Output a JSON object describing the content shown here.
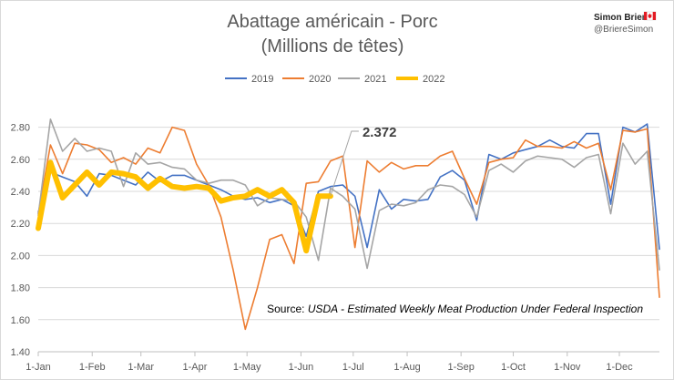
{
  "chart_data": {
    "type": "line",
    "title": "Abattage américain - Porc",
    "subtitle": "(Millions de têtes)",
    "xlabel": "",
    "ylabel": "",
    "ylim": [
      1.4,
      2.9
    ],
    "yticks": [
      "1.40",
      "1.60",
      "1.80",
      "2.00",
      "2.20",
      "2.40",
      "2.60",
      "2.80"
    ],
    "xlim": [
      1,
      52
    ],
    "xticks": [
      {
        "week": 1,
        "label": "1-Jan"
      },
      {
        "week": 5.43,
        "label": "1-Feb"
      },
      {
        "week": 9.43,
        "label": "1-Mar"
      },
      {
        "week": 13.86,
        "label": "1-Apr"
      },
      {
        "week": 18.14,
        "label": "1-May"
      },
      {
        "week": 22.57,
        "label": "1-Jun"
      },
      {
        "week": 26.86,
        "label": "1-Jul"
      },
      {
        "week": 31.29,
        "label": "1-Aug"
      },
      {
        "week": 35.71,
        "label": "1-Sep"
      },
      {
        "week": 40,
        "label": "1-Oct"
      },
      {
        "week": 44.43,
        "label": "1-Nov"
      },
      {
        "week": 48.71,
        "label": "1-Dec"
      }
    ],
    "grid": true,
    "legend_position": "top",
    "series": [
      {
        "name": "2019",
        "color": "#4472C4",
        "width": 1.6,
        "x": [
          1,
          2,
          3,
          4,
          5,
          6,
          7,
          8,
          9,
          10,
          11,
          12,
          13,
          14,
          15,
          16,
          17,
          18,
          19,
          20,
          21,
          22,
          23,
          24,
          25,
          26,
          27,
          28,
          29,
          30,
          31,
          32,
          33,
          34,
          35,
          36,
          37,
          38,
          39,
          40,
          41,
          42,
          43,
          44,
          45,
          46,
          47,
          48,
          49,
          50,
          51,
          52
        ],
        "values": [
          2.27,
          2.52,
          2.49,
          2.46,
          2.37,
          2.51,
          2.5,
          2.47,
          2.44,
          2.52,
          2.46,
          2.5,
          2.5,
          2.47,
          2.44,
          2.41,
          2.37,
          2.35,
          2.36,
          2.33,
          2.35,
          2.31,
          2.12,
          2.4,
          2.43,
          2.44,
          2.37,
          2.05,
          2.41,
          2.29,
          2.35,
          2.34,
          2.35,
          2.49,
          2.53,
          2.47,
          2.22,
          2.63,
          2.6,
          2.64,
          2.66,
          2.68,
          2.72,
          2.68,
          2.67,
          2.76,
          2.76,
          2.32,
          2.8,
          2.77,
          2.82,
          2.04
        ]
      },
      {
        "name": "2020",
        "color": "#ED7D31",
        "width": 1.6,
        "x": [
          1,
          2,
          3,
          4,
          5,
          6,
          7,
          8,
          9,
          10,
          11,
          12,
          13,
          14,
          15,
          16,
          17,
          18,
          19,
          20,
          21,
          22,
          23,
          24,
          25,
          26,
          27,
          28,
          29,
          30,
          31,
          32,
          33,
          34,
          35,
          36,
          37,
          38,
          39,
          40,
          41,
          42,
          43,
          44,
          45,
          46,
          47,
          48,
          49,
          50,
          51,
          52
        ],
        "values": [
          2.26,
          2.69,
          2.51,
          2.7,
          2.69,
          2.66,
          2.58,
          2.61,
          2.57,
          2.67,
          2.64,
          2.8,
          2.78,
          2.57,
          2.44,
          2.24,
          1.91,
          1.54,
          1.8,
          2.1,
          2.13,
          1.95,
          2.45,
          2.46,
          2.59,
          2.62,
          2.05,
          2.59,
          2.52,
          2.58,
          2.54,
          2.56,
          2.56,
          2.62,
          2.65,
          2.48,
          2.32,
          2.58,
          2.6,
          2.61,
          2.72,
          2.68,
          2.68,
          2.67,
          2.71,
          2.67,
          2.7,
          2.41,
          2.78,
          2.77,
          2.79,
          1.74
        ]
      },
      {
        "name": "2021",
        "color": "#A5A5A5",
        "width": 1.6,
        "x": [
          1,
          2,
          3,
          4,
          5,
          6,
          7,
          8,
          9,
          10,
          11,
          12,
          13,
          14,
          15,
          16,
          17,
          18,
          19,
          20,
          21,
          22,
          23,
          24,
          25,
          26,
          27,
          28,
          29,
          30,
          31,
          32,
          33,
          34,
          35,
          36,
          37,
          38,
          39,
          40,
          41,
          42,
          43,
          44,
          45,
          46,
          47,
          48,
          49,
          50,
          51,
          52
        ],
        "values": [
          2.25,
          2.85,
          2.65,
          2.73,
          2.65,
          2.67,
          2.65,
          2.43,
          2.64,
          2.57,
          2.58,
          2.55,
          2.54,
          2.47,
          2.45,
          2.47,
          2.47,
          2.44,
          2.31,
          2.36,
          2.35,
          2.34,
          2.24,
          1.97,
          2.42,
          2.37,
          2.29,
          1.92,
          2.28,
          2.32,
          2.31,
          2.33,
          2.41,
          2.44,
          2.43,
          2.38,
          2.24,
          2.53,
          2.57,
          2.52,
          2.59,
          2.62,
          2.61,
          2.6,
          2.55,
          2.61,
          2.63,
          2.26,
          2.7,
          2.57,
          2.65,
          1.91
        ]
      },
      {
        "name": "2022",
        "color": "#FFC000",
        "width": 6,
        "x": [
          1,
          2,
          3,
          4,
          5,
          6,
          7,
          8,
          9,
          10,
          11,
          12,
          13,
          14,
          15,
          16,
          17,
          18,
          19,
          20,
          21,
          22,
          23,
          24,
          25
        ],
        "values": [
          2.17,
          2.58,
          2.36,
          2.44,
          2.52,
          2.44,
          2.52,
          2.51,
          2.49,
          2.42,
          2.48,
          2.43,
          2.42,
          2.43,
          2.42,
          2.34,
          2.36,
          2.37,
          2.41,
          2.37,
          2.41,
          2.33,
          2.03,
          2.37,
          2.37
        ]
      }
    ],
    "annotations": [
      {
        "text": "2.372",
        "x": 25,
        "y": 2.372
      }
    ]
  },
  "author": {
    "name": "Simon Briere",
    "flag": "🇨🇦",
    "handle": "@BriereSimon"
  },
  "source": {
    "prefix": "Source: ",
    "text": "USDA - Estimated Weekly Meat Production Under Federal Inspection"
  }
}
